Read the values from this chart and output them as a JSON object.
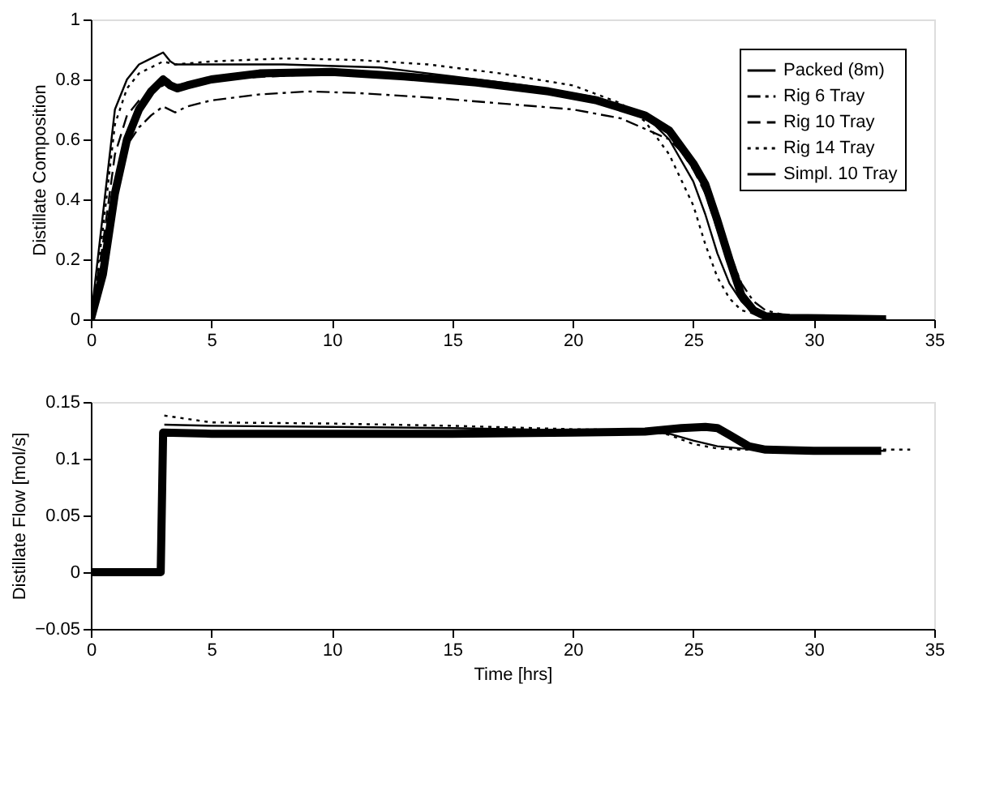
{
  "chart_data": [
    {
      "type": "line",
      "ylabel": "Distillate Composition",
      "xlim": [
        0,
        35
      ],
      "xticks": [
        0,
        5,
        10,
        15,
        20,
        25,
        30,
        35
      ],
      "ylim": [
        0,
        1
      ],
      "yticks": [
        {
          "value": 0,
          "label": "0"
        },
        0.2,
        0.4,
        0.6,
        0.8,
        {
          "value": 1,
          "label": "1"
        }
      ],
      "grid": false,
      "legend": "top right",
      "marker": "none",
      "series": [
        {
          "name": "Packed (8m)",
          "color": "#000000",
          "line_style": "solid",
          "x": [
            0,
            0.5,
            1,
            1.5,
            2,
            2.5,
            3,
            3.3,
            3.6,
            4,
            5,
            7,
            10,
            13,
            16,
            19,
            21,
            23,
            24,
            25,
            25.5,
            26,
            26.5,
            27,
            27.5,
            28,
            29,
            33
          ],
          "values": [
            0,
            0.15,
            0.42,
            0.6,
            0.7,
            0.76,
            0.8,
            0.78,
            0.77,
            0.78,
            0.8,
            0.82,
            0.825,
            0.81,
            0.79,
            0.76,
            0.73,
            0.68,
            0.63,
            0.52,
            0.45,
            0.33,
            0.2,
            0.08,
            0.03,
            0.01,
            0.005,
            0
          ]
        },
        {
          "name": "Rig 6 Tray",
          "color": "#000000",
          "line_style": "dashdot",
          "x": [
            0,
            0.5,
            1,
            1.5,
            2,
            2.5,
            3,
            3.5,
            4,
            5,
            7,
            9,
            11,
            14,
            17,
            20,
            22,
            24,
            25,
            26,
            26.5,
            27,
            27.5,
            28,
            29,
            30,
            33
          ],
          "values": [
            0,
            0.2,
            0.45,
            0.58,
            0.64,
            0.68,
            0.71,
            0.69,
            0.71,
            0.73,
            0.75,
            0.76,
            0.755,
            0.74,
            0.72,
            0.7,
            0.67,
            0.6,
            0.52,
            0.35,
            0.22,
            0.12,
            0.06,
            0.03,
            0.01,
            0.005,
            0
          ]
        },
        {
          "name": "Rig 10 Tray",
          "color": "#000000",
          "line_style": "dashed",
          "x": [
            0,
            0.5,
            1,
            1.5,
            2,
            2.5,
            3,
            3.2,
            3.5,
            5,
            10,
            13,
            16,
            19,
            21,
            23,
            24,
            25,
            25.5,
            26,
            26.5,
            27,
            27.5,
            28,
            29,
            33
          ],
          "values": [
            0,
            0.25,
            0.55,
            0.68,
            0.73,
            0.76,
            0.78,
            0.8,
            0.78,
            0.8,
            0.82,
            0.81,
            0.79,
            0.76,
            0.73,
            0.68,
            0.62,
            0.5,
            0.42,
            0.3,
            0.18,
            0.09,
            0.04,
            0.02,
            0.005,
            0
          ]
        },
        {
          "name": "Rig 14 Tray",
          "color": "#000000",
          "line_style": "dotted",
          "x": [
            0,
            0.5,
            1,
            1.5,
            2,
            3,
            3.5,
            5,
            8,
            11,
            14,
            17,
            20,
            22,
            23,
            24,
            25,
            25.5,
            26,
            26.5,
            27,
            28,
            30
          ],
          "values": [
            0,
            0.3,
            0.65,
            0.77,
            0.82,
            0.86,
            0.85,
            0.86,
            0.87,
            0.865,
            0.85,
            0.82,
            0.78,
            0.72,
            0.66,
            0.55,
            0.38,
            0.25,
            0.14,
            0.07,
            0.03,
            0.01,
            0
          ]
        },
        {
          "name": "Simpl. 10 Tray",
          "color": "#000000",
          "line_style": "solid",
          "x": [
            0,
            0.5,
            1,
            1.5,
            2,
            2.5,
            3,
            3.3,
            3.5,
            5,
            8,
            12,
            15,
            18,
            21,
            23,
            24,
            25,
            25.5,
            26,
            26.5,
            27,
            27.5,
            28.5,
            30
          ],
          "values": [
            0,
            0.35,
            0.7,
            0.8,
            0.85,
            0.87,
            0.89,
            0.86,
            0.85,
            0.85,
            0.85,
            0.84,
            0.81,
            0.78,
            0.74,
            0.68,
            0.6,
            0.46,
            0.35,
            0.22,
            0.12,
            0.06,
            0.02,
            0.005,
            0
          ]
        }
      ]
    },
    {
      "type": "line",
      "ylabel": "Distillate Flow [mol/s]",
      "xlabel": "Time [hrs]",
      "xlim": [
        0,
        35
      ],
      "xticks": [
        0,
        5,
        10,
        15,
        20,
        25,
        30,
        35
      ],
      "ylim": [
        -0.05,
        0.15
      ],
      "yticks": [
        {
          "value": -0.05,
          "label": "−0.05"
        },
        0,
        0.05,
        0.1,
        0.15
      ],
      "grid": false,
      "legend": false,
      "marker": "none",
      "series": [
        {
          "color": "#000000",
          "line_style": "solid",
          "x": [
            0,
            2.9,
            3.0,
            5,
            10,
            15,
            20,
            23,
            24.5,
            25.5,
            26,
            26.5,
            27.3,
            28,
            30,
            32.8
          ],
          "values": [
            0,
            0,
            0.123,
            0.122,
            0.122,
            0.122,
            0.123,
            0.124,
            0.127,
            0.128,
            0.127,
            0.121,
            0.111,
            0.108,
            0.107,
            0.107
          ]
        },
        {
          "color": "#000000",
          "line_style": "solid",
          "x": [
            3.05,
            5,
            10,
            15,
            20,
            23,
            24,
            25,
            26,
            27,
            30,
            33
          ],
          "values": [
            0.13,
            0.129,
            0.128,
            0.127,
            0.125,
            0.124,
            0.122,
            0.116,
            0.111,
            0.109,
            0.107,
            0.107
          ]
        },
        {
          "color": "#000000",
          "line_style": "dotted",
          "x": [
            3.05,
            5,
            10,
            15,
            20,
            23,
            24,
            25,
            26,
            27,
            30,
            34
          ],
          "values": [
            0.138,
            0.132,
            0.131,
            0.129,
            0.126,
            0.125,
            0.121,
            0.113,
            0.109,
            0.108,
            0.108,
            0.108
          ]
        }
      ]
    }
  ]
}
